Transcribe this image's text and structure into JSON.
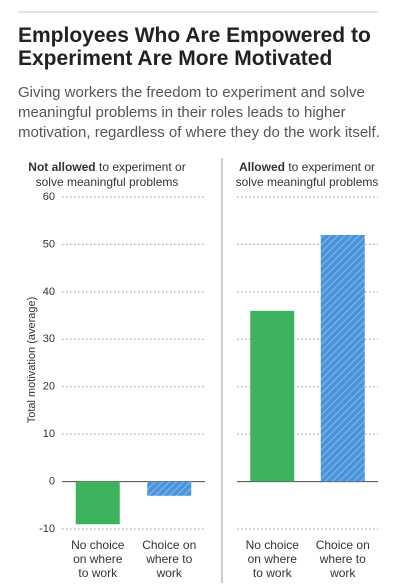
{
  "chart_data": {
    "type": "bar",
    "title": "Employees Who Are Empowered to Experiment Are More Motivated",
    "subtitle": "Giving workers the freedom to experiment and solve meaningful problems in their roles leads to higher motivation, regardless of where they do the work itself.",
    "y_label": "Total motivation (average)",
    "ylim": [
      -10,
      60
    ],
    "yticks": [
      -10,
      0,
      10,
      20,
      30,
      40,
      50,
      60
    ],
    "grid": true,
    "categories": [
      "No choice on where to work",
      "Choice on where to work"
    ],
    "colors": [
      "#3db35e",
      "#4a94dc"
    ],
    "hatch": [
      false,
      true
    ],
    "panels": [
      {
        "title": {
          "bold": "Not allowed",
          "rest": "to experiment or solve meaningful problems"
        },
        "values": [
          -9,
          -3
        ]
      },
      {
        "title": {
          "bold": "Allowed",
          "rest": "to experiment or solve meaningful problems"
        },
        "values": [
          36,
          52
        ]
      }
    ]
  }
}
